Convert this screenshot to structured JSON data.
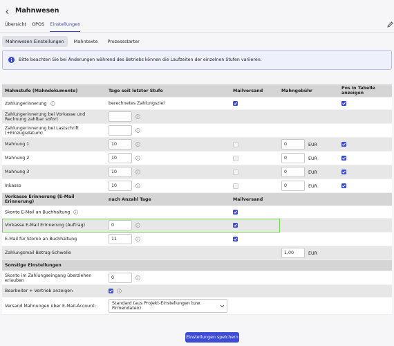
{
  "header": {
    "title": "Mahnwesen",
    "tabs": [
      "Übersicht",
      "OPOS",
      "Einstellungen"
    ],
    "active_tab": 2
  },
  "subtabs": {
    "items": [
      "Mahnwesen Einstellungen",
      "Mahntexte",
      "Prozessstarter"
    ],
    "active": 0
  },
  "notice": "Bitte beachten Sie bei Änderungen während des Betriebs können die Laufzeiten der einzelnen Stufen variieren.",
  "table": {
    "sections": [
      {
        "header": [
          "Mahnstufe (Mahndokumente)",
          "Tage seit letzter Stufe",
          "Mailversand",
          "Mahngebühr",
          "Pos in Tabelle anzeigen"
        ],
        "rows": [
          {
            "label": "Zahlungerinnerung",
            "label_info": true,
            "days_text": "berechnetes Zahlungsziel",
            "mail": true,
            "pos": true
          },
          {
            "label": "Zahlungerinnerung bei Vorkasse und Rechnung zahlbar sofort",
            "days": null,
            "info": true
          },
          {
            "label": "Zahlungerinnerung bei Lastschrift (+Einzugsdatum)",
            "days": null,
            "info": true
          },
          {
            "label": "Mahnung 1",
            "days": "10",
            "info": true,
            "mail": false,
            "fee": "0",
            "currency": "EUR",
            "pos": true
          },
          {
            "label": "Mahnung 2",
            "days": "10",
            "info": true,
            "mail": false,
            "fee": "0",
            "currency": "EUR",
            "pos": true
          },
          {
            "label": "Mahnung 3",
            "days": "10",
            "info": true,
            "mail": false,
            "fee": "0",
            "currency": "EUR",
            "pos": true
          },
          {
            "label": "Inkasso",
            "days": "10",
            "info": true,
            "mail": false,
            "fee": "0",
            "currency": "EUR",
            "pos": true
          }
        ]
      },
      {
        "header": [
          "Vorkasse Erinnerung (E-Mail Erinnerung)",
          "nach Anzahl Tage",
          "Mailversand"
        ],
        "rows": [
          {
            "label": "Skonto E-Mail an Buchhaltung",
            "label_info": true,
            "mail": true
          },
          {
            "label": "Vorkasse E-Mail Erinnerung (Auftrag)",
            "days": "0",
            "info": true,
            "mail": true,
            "highlighted": true
          },
          {
            "label": "E-Mail für Storno an Buchhaltung",
            "days": "11",
            "info": true,
            "mail": true
          },
          {
            "label": "Zahlungsmail Betrag-Schwelle",
            "fee": "1,00",
            "currency": "EUR"
          }
        ]
      },
      {
        "header": [
          "Sonstige Einstellungen"
        ],
        "rows": [
          {
            "label": "Skonto im Zahlungseingang überziehen erlauben",
            "days": "0",
            "info": true
          },
          {
            "label": "Bearbeiter + Vertrieb anzeigen",
            "checkbox": true,
            "info": true
          },
          {
            "label": "Versand Mahnungen über E-Mail-Account:",
            "select": "Standard (aus Projekt-Einstellungen bzw. Firmendaten)"
          }
        ]
      }
    ]
  },
  "save_button": "Einstellungen speichern"
}
